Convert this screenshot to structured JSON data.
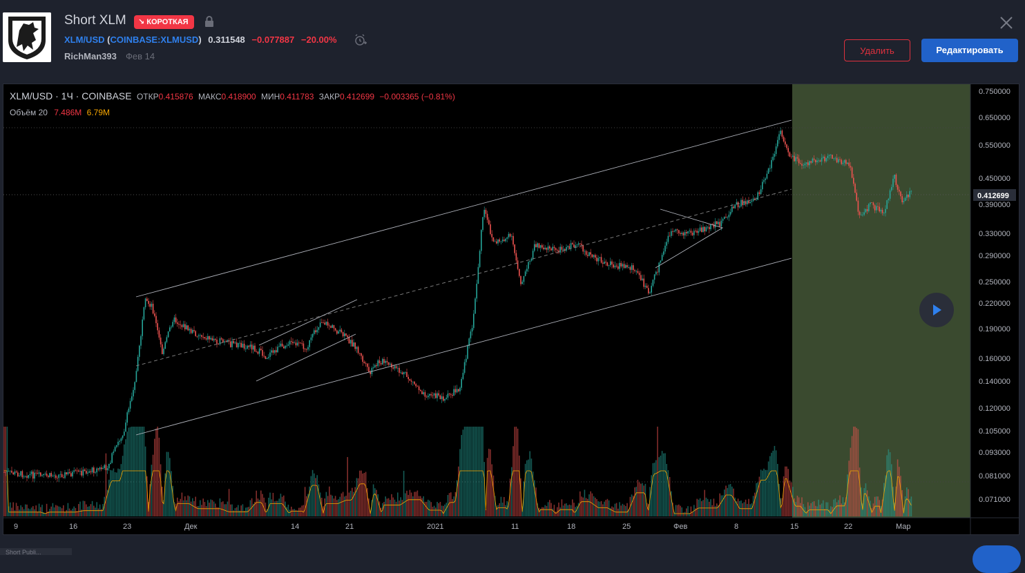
{
  "header": {
    "title": "Short XLM",
    "badge": "↘ КОРОТКАЯ",
    "symbol_link": "XLM/USD",
    "exchange_link": "COINBASE:XLMUSD",
    "paren_open": "(",
    "paren_close": ")",
    "last_price": "0.311548",
    "change": "−0.077887",
    "change_pct": "−20.00%",
    "author": "RichMan393",
    "date": "Фев 14",
    "delete_label": "Удалить",
    "edit_label": "Редактировать"
  },
  "legend": {
    "symbol": "XLM/USD · 1Ч · COINBASE",
    "open_label": "ОТКР",
    "open": "0.415876",
    "high_label": "МАКС",
    "high": "0.418900",
    "low_label": "МИН",
    "low": "0.411783",
    "close_label": "ЗАКР",
    "close": "0.412699",
    "change": "−0.003365 (−0.81%)",
    "volume_label": "Объём 20",
    "volume": "7.486M",
    "volume_ma": "6.79M"
  },
  "price_axis": {
    "ticks": [
      "0.750000",
      "0.650000",
      "0.550000",
      "0.450000",
      "0.390000",
      "0.330000",
      "0.290000",
      "0.250000",
      "0.220000",
      "0.190000",
      "0.160000",
      "0.140000",
      "0.120000",
      "0.105000",
      "0.093000",
      "0.081000",
      "0.071000"
    ],
    "current_price": "0.412699"
  },
  "time_axis": {
    "ticks": [
      "9",
      "16",
      "23",
      "Дек",
      "14",
      "21",
      "2021",
      "11",
      "18",
      "25",
      "Фев",
      "8",
      "15",
      "22",
      "Мар"
    ]
  },
  "footer": {
    "tab_label": "Short Publi..."
  },
  "colors": {
    "up": "#26a69a",
    "down": "#ef5350",
    "projection_zone": "#3a4a2f",
    "accent": "#2162c9",
    "danger": "#e0313e"
  },
  "icons": [
    "lock-icon",
    "alarm-clock-icon",
    "close-icon",
    "play-icon",
    "lion-avatar"
  ]
}
